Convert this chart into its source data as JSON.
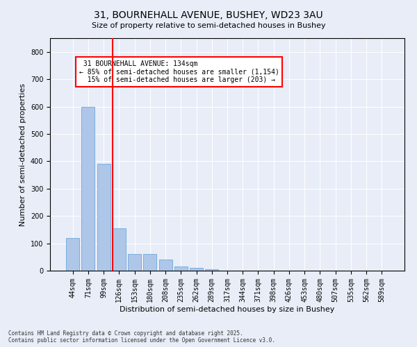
{
  "title": "31, BOURNEHALL AVENUE, BUSHEY, WD23 3AU",
  "subtitle": "Size of property relative to semi-detached houses in Bushey",
  "xlabel": "Distribution of semi-detached houses by size in Bushey",
  "ylabel": "Number of semi-detached properties",
  "categories": [
    "44sqm",
    "71sqm",
    "99sqm",
    "126sqm",
    "153sqm",
    "180sqm",
    "208sqm",
    "235sqm",
    "262sqm",
    "289sqm",
    "317sqm",
    "344sqm",
    "371sqm",
    "398sqm",
    "426sqm",
    "453sqm",
    "480sqm",
    "507sqm",
    "535sqm",
    "562sqm",
    "589sqm"
  ],
  "values": [
    120,
    600,
    390,
    155,
    60,
    60,
    40,
    15,
    10,
    5,
    0,
    0,
    0,
    0,
    0,
    0,
    0,
    0,
    0,
    0,
    0
  ],
  "bar_color": "#aec6e8",
  "bar_edge_color": "#5a9fd4",
  "highlight_index": 3,
  "highlight_color": "#ff0000",
  "property_label": "31 BOURNEHALL AVENUE: 134sqm",
  "pct_smaller": 85,
  "count_smaller": 1154,
  "pct_larger": 15,
  "count_larger": 203,
  "ylim": [
    0,
    850
  ],
  "yticks": [
    0,
    100,
    200,
    300,
    400,
    500,
    600,
    700,
    800
  ],
  "background_color": "#e8edf8",
  "plot_background": "#e8edf8",
  "footer_line1": "Contains HM Land Registry data © Crown copyright and database right 2025.",
  "footer_line2": "Contains public sector information licensed under the Open Government Licence v3.0.",
  "title_fontsize": 10,
  "axis_label_fontsize": 8,
  "tick_fontsize": 7
}
